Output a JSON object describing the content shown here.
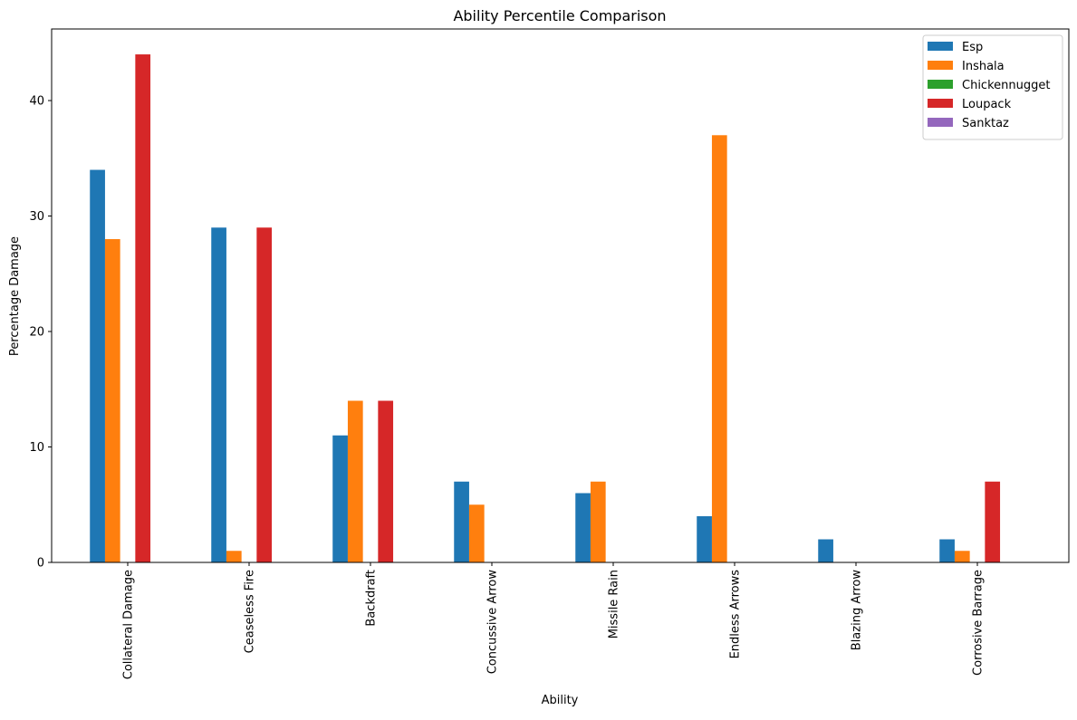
{
  "chart_data": {
    "type": "bar",
    "title": "Ability Percentile Comparison",
    "xlabel": "Ability",
    "ylabel": "Percentage Damage",
    "ylim": [
      0,
      46.2
    ],
    "yticks": [
      0,
      10,
      20,
      30,
      40
    ],
    "categories": [
      "Collateral Damage",
      "Ceaseless Fire",
      "Backdraft",
      "Concussive Arrow",
      "Missile Rain",
      "Endless Arrows",
      "Blazing Arrow",
      "Corrosive Barrage"
    ],
    "series": [
      {
        "name": "Esp",
        "color": "#1f77b4",
        "values": [
          34,
          29,
          11,
          7,
          6,
          4,
          2,
          2
        ]
      },
      {
        "name": "Inshala",
        "color": "#ff7f0e",
        "values": [
          28,
          1,
          14,
          5,
          7,
          37,
          0,
          1
        ]
      },
      {
        "name": "Chickennugget",
        "color": "#2ca02c",
        "values": [
          0,
          0,
          0,
          0,
          0,
          0,
          0,
          0
        ]
      },
      {
        "name": "Loupack",
        "color": "#d62728",
        "values": [
          44,
          29,
          14,
          0,
          0,
          0,
          0,
          7
        ]
      },
      {
        "name": "Sanktaz",
        "color": "#9467bd",
        "values": [
          0,
          0,
          0,
          0,
          0,
          0,
          0,
          0
        ]
      }
    ],
    "legend_position": "top-right",
    "grid": false
  }
}
